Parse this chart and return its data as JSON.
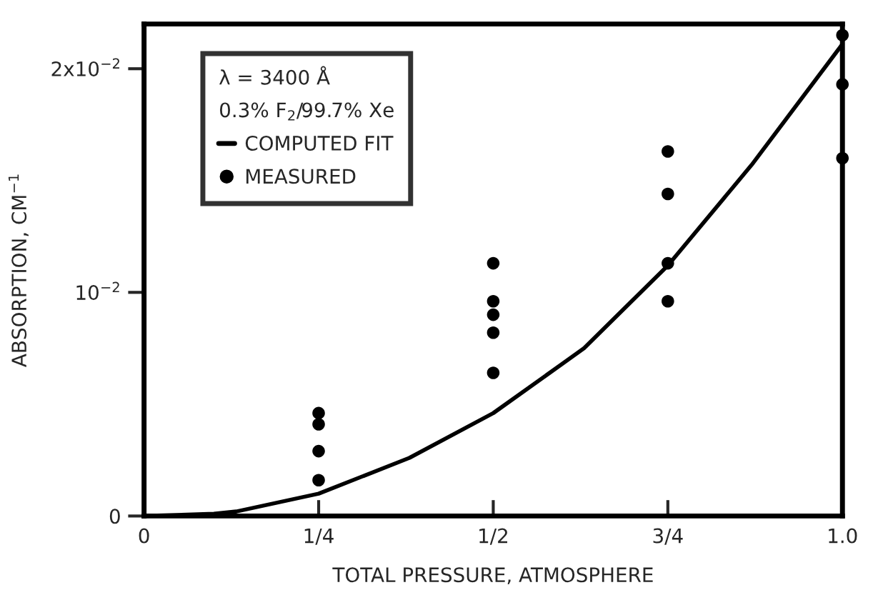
{
  "chart_data": {
    "type": "scatter",
    "xlabel": "TOTAL PRESSURE, ATMOSPHERE",
    "ylabel": "ABSORPTION, CM$^{−1}$",
    "legend_title": "λ = 3400 Å\n0.3% F$_{2}$/99.7% Xe",
    "series": [
      {
        "name": "COMPUTED FIT",
        "type": "line",
        "color": "#000000",
        "marker": "none",
        "line_style": "solid",
        "x": [
          0,
          0.1,
          0.132,
          0.25,
          0.38,
          0.5,
          0.63,
          0.75,
          0.87,
          1.0
        ],
        "values": [
          0,
          0.0001,
          0.0002,
          0.001,
          0.0026,
          0.0046,
          0.0075,
          0.0112,
          0.0157,
          0.0211
        ]
      },
      {
        "name": "MEASURED",
        "color": "#000000",
        "marker": "circle",
        "x": [
          0.25,
          0.25,
          0.25,
          0.25,
          0.5,
          0.5,
          0.5,
          0.5,
          0.5,
          0.75,
          0.75,
          0.75,
          0.75,
          1.0,
          1.0,
          1.0
        ],
        "values": [
          0.0046,
          0.0041,
          0.0029,
          0.0016,
          0.0113,
          0.0096,
          0.009,
          0.0082,
          0.0064,
          0.0163,
          0.0144,
          0.0113,
          0.0096,
          0.0215,
          0.0193,
          0.016
        ]
      }
    ],
    "xlim": [
      0,
      1.0
    ],
    "ylim": [
      0,
      0.022
    ],
    "xticks": [
      0,
      {
        "value": 0.25,
        "label": "1/4"
      },
      {
        "value": 0.5,
        "label": "1/2"
      },
      {
        "value": 0.75,
        "label": "3/4"
      },
      {
        "value": 1.0,
        "label": "1.0"
      }
    ],
    "yticks": [
      {
        "value": 0,
        "label": "0"
      },
      {
        "value": 0.01,
        "label": "10$^{−2}$"
      },
      {
        "value": 0.02,
        "label": "2x10$^{−2}$"
      }
    ],
    "legend": "top left",
    "grid": false
  }
}
